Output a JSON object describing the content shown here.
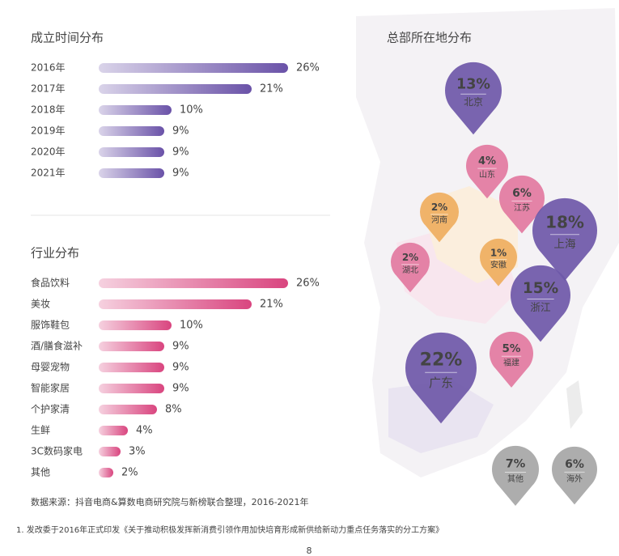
{
  "chart_data": [
    {
      "type": "bar",
      "orientation": "horizontal",
      "title": "成立时间分布",
      "categories": [
        "2016年",
        "2017年",
        "2018年",
        "2019年",
        "2020年",
        "2021年"
      ],
      "values": [
        26,
        21,
        10,
        9,
        9,
        9
      ],
      "value_labels": [
        "26%",
        "21%",
        "10%",
        "9%",
        "9%",
        "9%"
      ],
      "color": "#6a52a8"
    },
    {
      "type": "bar",
      "orientation": "horizontal",
      "title": "行业分布",
      "categories": [
        "食品饮料",
        "美妆",
        "服饰鞋包",
        "酒/膳食滋补",
        "母婴宠物",
        "智能家居",
        "个护家清",
        "生鲜",
        "3C数码家电",
        "其他"
      ],
      "values": [
        26,
        21,
        10,
        9,
        9,
        9,
        8,
        4,
        3,
        2
      ],
      "value_labels": [
        "26%",
        "21%",
        "10%",
        "9%",
        "9%",
        "9%",
        "8%",
        "4%",
        "3%",
        "2%"
      ],
      "color": "#d9457f"
    },
    {
      "type": "map",
      "title": "总部所在地分布",
      "categories": [
        "北京",
        "山东",
        "江苏",
        "河南",
        "上海",
        "湖北",
        "安徽",
        "浙江",
        "福建",
        "广东",
        "其他",
        "海外"
      ],
      "values": [
        13,
        4,
        6,
        2,
        18,
        2,
        1,
        15,
        5,
        22,
        7,
        6
      ],
      "value_labels": [
        "13%",
        "4%",
        "6%",
        "2%",
        "18%",
        "2%",
        "1%",
        "15%",
        "5%",
        "22%",
        "7%",
        "6%"
      ],
      "colors": [
        "#6e58a8",
        "#e27aa0",
        "#e27aa0",
        "#efae5e",
        "#6e58a8",
        "#e27aa0",
        "#efae5e",
        "#6e58a8",
        "#e27aa0",
        "#6e58a8",
        "#a6a6a6",
        "#a6a6a6"
      ]
    }
  ],
  "source": "数据来源：抖音电商&算数电商研究院与新榜联合整理，2016-2021年",
  "footnote": "1. 发改委于2016年正式印发《关于推动积极发挥新消费引领作用加快培育形成新供给新动力重点任务落实的分工方案》",
  "page_number": "8"
}
